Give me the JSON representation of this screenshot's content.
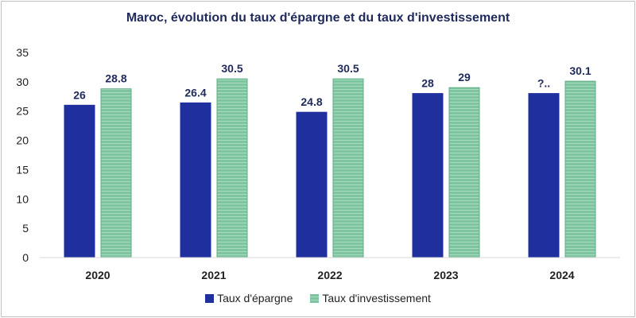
{
  "chart_data": {
    "type": "bar",
    "title": "Maroc, évolution du taux d'épargne et du taux d'investissement",
    "categories": [
      "2020",
      "2021",
      "2022",
      "2023",
      "2024"
    ],
    "series": [
      {
        "name": "Taux d'épargne",
        "values": [
          26,
          26.4,
          24.8,
          28,
          28
        ],
        "labels": [
          "26",
          "26.4",
          "24.8",
          "28",
          "?.."
        ],
        "color": "#1f2f9e"
      },
      {
        "name": "Taux d'investissement",
        "values": [
          28.8,
          30.5,
          30.5,
          29,
          30.1
        ],
        "labels": [
          "28.8",
          "30.5",
          "30.5",
          "29",
          "30.1"
        ],
        "color": "#7ec4a0"
      }
    ],
    "ylim": [
      0,
      35
    ],
    "yticks": [
      0,
      5,
      10,
      15,
      20,
      25,
      30,
      35
    ],
    "grid": false,
    "legend": "bottom"
  }
}
